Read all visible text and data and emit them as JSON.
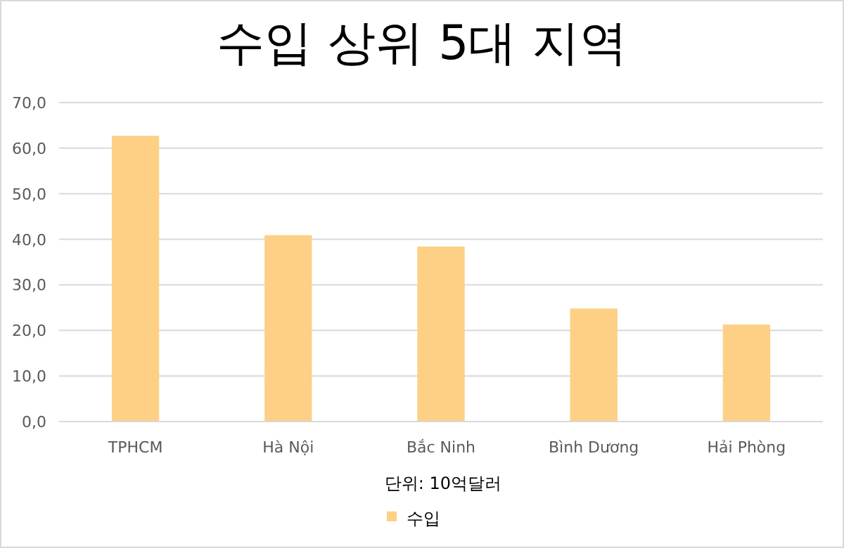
{
  "chart_data": {
    "type": "bar",
    "title": "수입 상위 5대 지역",
    "xlabel": "단위: 10억달러",
    "categories": [
      "TPHCM",
      "Hà Nội",
      "Bắc Ninh",
      "Bình Dương",
      "Hải Phòng"
    ],
    "series": [
      {
        "name": "수입",
        "color": "#fdd085",
        "values": [
          62.7,
          40.9,
          38.4,
          24.8,
          21.3
        ]
      }
    ],
    "ylim": [
      0,
      70
    ],
    "yticks": [
      {
        "value": 0,
        "label": "0,0"
      },
      {
        "value": 10,
        "label": "10,0"
      },
      {
        "value": 20,
        "label": "20,0"
      },
      {
        "value": 30,
        "label": "30,0"
      },
      {
        "value": 40,
        "label": "40,0"
      },
      {
        "value": 50,
        "label": "50,0"
      },
      {
        "value": 60,
        "label": "60,0"
      },
      {
        "value": 70,
        "label": "70,0"
      }
    ],
    "grid": "y",
    "legend": "bottom"
  }
}
